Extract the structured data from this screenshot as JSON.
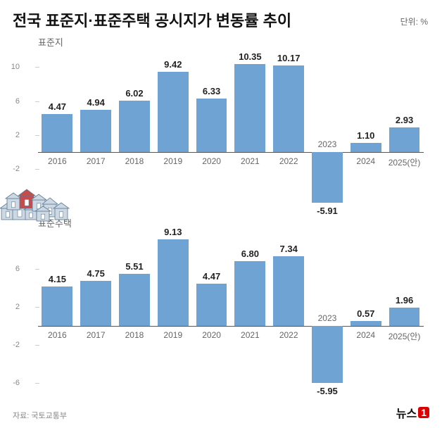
{
  "title": "전국 표준지·표준주택 공시지가 변동률 추이",
  "unit": "단위: %",
  "source": "자료: 국토교통부",
  "logo_text": "뉴스",
  "logo_one": "1",
  "charts": [
    {
      "subtitle": "표준지",
      "categories": [
        "2016",
        "2017",
        "2018",
        "2019",
        "2020",
        "2021",
        "2022",
        "2023",
        "2024",
        "2025(안)"
      ],
      "values": [
        4.47,
        4.94,
        6.02,
        9.42,
        6.33,
        10.35,
        10.17,
        -5.91,
        1.1,
        2.93
      ],
      "val_labels": [
        "4.47",
        "4.94",
        "6.02",
        "9.42",
        "6.33",
        "10.35",
        "10.17",
        "-5.91",
        "1.10",
        "2.93"
      ],
      "bar_color": "#6fa3d4",
      "ymin": -7,
      "ymax": 12,
      "yticks": [
        -6,
        -2,
        2,
        6,
        10
      ],
      "ytick_labels": [
        "",
        "-2",
        "2",
        "6",
        "10"
      ],
      "zero": 0,
      "tick_fontsize": 11,
      "label_fontsize": 13
    },
    {
      "subtitle": "표준주택",
      "categories": [
        "2016",
        "2017",
        "2018",
        "2019",
        "2020",
        "2021",
        "2022",
        "2023",
        "2024",
        "2025(안)"
      ],
      "values": [
        4.15,
        4.75,
        5.51,
        9.13,
        4.47,
        6.8,
        7.34,
        -5.95,
        0.57,
        1.96
      ],
      "val_labels": [
        "4.15",
        "4.75",
        "5.51",
        "9.13",
        "4.47",
        "6.80",
        "7.34",
        "-5.95",
        "0.57",
        "1.96"
      ],
      "bar_color": "#6fa3d4",
      "ymin": -7,
      "ymax": 10,
      "yticks": [
        -6,
        -2,
        2,
        6
      ],
      "ytick_labels": [
        "-6",
        "-2",
        "2",
        "6"
      ],
      "zero": 0,
      "tick_fontsize": 11,
      "label_fontsize": 13
    }
  ],
  "colors": {
    "title": "#111111",
    "subtitle": "#666666",
    "axis": "#888888",
    "zero_line": "#555555",
    "house_fill": "#cdd8e2",
    "house_outline": "#5a7a96",
    "house_red": "#c84b4b"
  }
}
